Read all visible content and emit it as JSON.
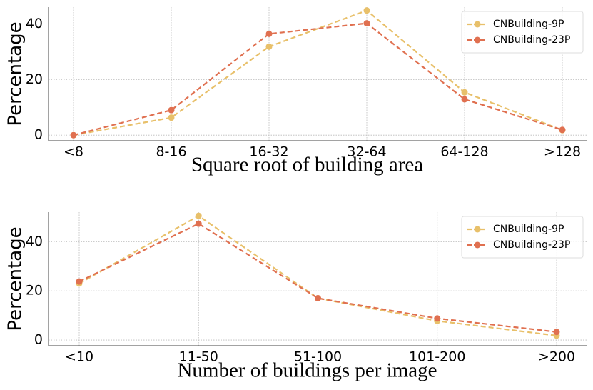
{
  "chart_data": [
    {
      "type": "line",
      "x_label": "Square root of building area",
      "y_label": "Percentage",
      "categories": [
        "<8",
        "8-16",
        "16-32",
        "32-64",
        "64-128",
        ">128"
      ],
      "series": [
        {
          "name": "CNBuilding-9P",
          "color": "#e8c06a",
          "values": [
            0,
            6.3,
            31.8,
            44.8,
            15.4,
            1.8
          ]
        },
        {
          "name": "CNBuilding-23P",
          "color": "#e07050",
          "values": [
            0,
            9,
            36.4,
            40.2,
            12.9,
            1.9
          ]
        }
      ],
      "ylim": [
        -2,
        46
      ],
      "yticks": [
        0,
        20,
        40
      ],
      "grid": true,
      "legend": "upper right"
    },
    {
      "type": "line",
      "x_label": "Number of buildings per image",
      "y_label": "Percentage",
      "categories": [
        "<10",
        "11-50",
        "51-100",
        "101-200",
        ">200"
      ],
      "series": [
        {
          "name": "CNBuilding-9P",
          "color": "#e8c06a",
          "values": [
            23,
            50.5,
            17,
            7.8,
            1.8
          ]
        },
        {
          "name": "CNBuilding-23P",
          "color": "#e07050",
          "values": [
            23.8,
            47.3,
            17,
            8.8,
            3.3
          ]
        }
      ],
      "ylim": [
        -2.3,
        52
      ],
      "yticks": [
        0,
        20,
        40
      ],
      "grid": true,
      "legend": "upper right"
    }
  ]
}
